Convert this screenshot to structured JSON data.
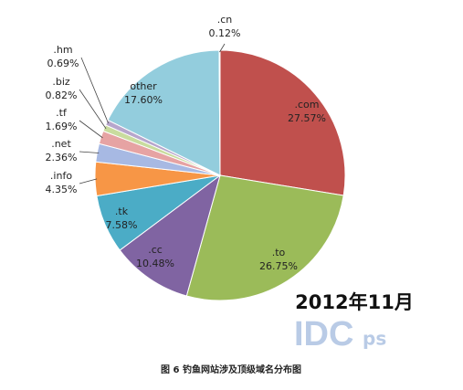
{
  "chart_data": {
    "type": "pie",
    "title": "图 6  钓鱼网站涉及顶级域名分布图",
    "annotations": [
      "2012年11月",
      "IDC",
      "ps"
    ],
    "categories": [
      ".com",
      ".to",
      ".cc",
      ".tk",
      ".info",
      ".net",
      ".tf",
      ".biz",
      ".hm",
      "other",
      ".cn"
    ],
    "values": [
      27.57,
      26.75,
      10.48,
      7.58,
      4.35,
      2.36,
      1.69,
      0.82,
      0.69,
      17.6,
      0.12
    ],
    "value_labels": [
      "27.57%",
      "26.75%",
      "10.48%",
      "7.58%",
      "4.35%",
      "2.36%",
      "1.69%",
      "0.82%",
      "0.69%",
      "17.60%",
      "0.12%"
    ],
    "colors": [
      "#c0504d",
      "#9bbb59",
      "#8064a2",
      "#4bacc6",
      "#f79646",
      "#a7b9e3",
      "#e6a3a3",
      "#c9dc9e",
      "#b7a6cc",
      "#93cddd",
      "#fac090"
    ]
  }
}
